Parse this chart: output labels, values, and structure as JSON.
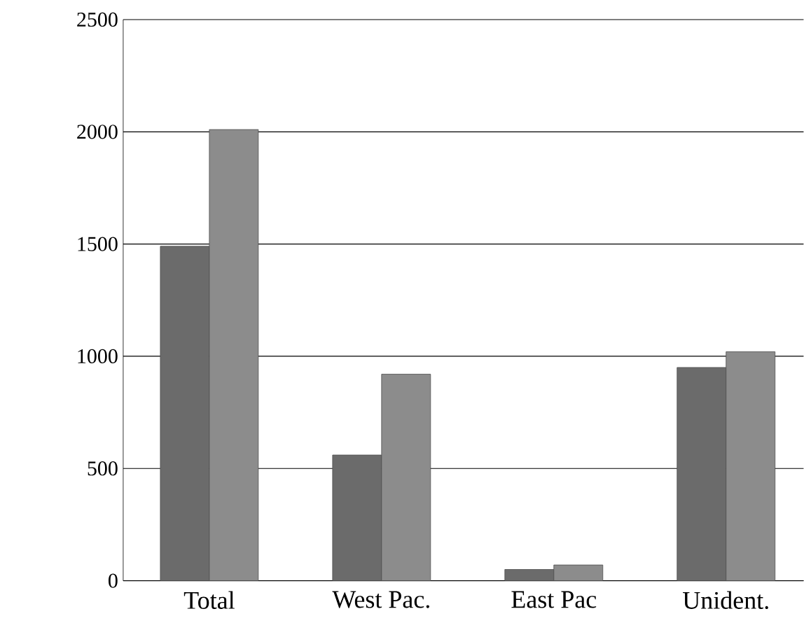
{
  "chart_data": {
    "type": "bar",
    "categories": [
      "Total",
      "West Pac.",
      "East Pac",
      "Unident."
    ],
    "series": [
      {
        "color": "#6b6b6b",
        "values": [
          1490,
          560,
          50,
          950
        ]
      },
      {
        "color": "#8c8c8c",
        "values": [
          2010,
          920,
          70,
          1020
        ]
      }
    ],
    "ylim": [
      0,
      2500
    ],
    "yticks": [
      0,
      500,
      1000,
      1500,
      2000,
      2500
    ],
    "grid": "y"
  }
}
